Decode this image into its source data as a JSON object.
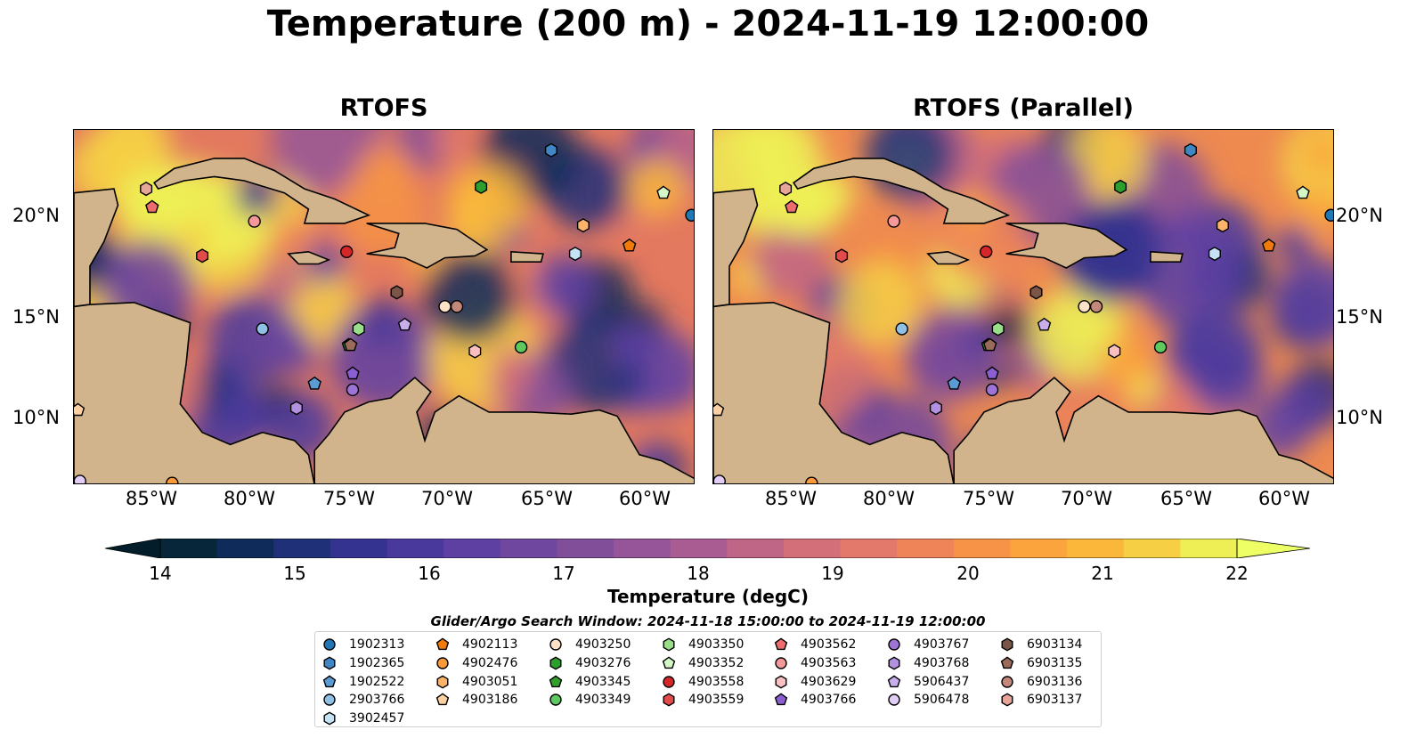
{
  "figure": {
    "suptitle": "Temperature (200 m) - 2024-11-19 12:00:00",
    "panels": [
      {
        "title": "RTOFS"
      },
      {
        "title": "RTOFS (Parallel)"
      }
    ],
    "lon_ticks": [
      "85°W",
      "80°W",
      "75°W",
      "70°W",
      "65°W",
      "60°W"
    ],
    "lat_ticks": [
      "20°N",
      "15°N",
      "10°N"
    ],
    "colorbar": {
      "label": "Temperature (degC)",
      "ticks": [
        "14",
        "15",
        "16",
        "17",
        "18",
        "19",
        "20",
        "21",
        "22"
      ],
      "colors": [
        "#08263a",
        "#0f2b5a",
        "#1f3078",
        "#34338f",
        "#4a399d",
        "#5e40a3",
        "#6f479f",
        "#814e9a",
        "#955598",
        "#a95c92",
        "#bf6586",
        "#d36f79",
        "#e3796a",
        "#ee8458",
        "#f69347",
        "#fba33c",
        "#fbb73a",
        "#f6cf45",
        "#eeee55"
      ],
      "extend_low": "#041d2a",
      "extend_high": "#eeff66"
    },
    "land_color": "#d2b48c",
    "ocean_color": "#95b4e0",
    "legend": {
      "title": "Glider/Argo Search Window: 2024-11-18 15:00:00 to 2024-11-19 12:00:00",
      "columns": [
        [
          {
            "label": "1902313",
            "marker": "circle",
            "color": "#1f77b4"
          },
          {
            "label": "1902365",
            "marker": "hexagon",
            "color": "#3f86c4"
          },
          {
            "label": "1902522",
            "marker": "pentagon",
            "color": "#5a9bd4"
          },
          {
            "label": "2903766",
            "marker": "circle",
            "color": "#8fc0e6"
          },
          {
            "label": "3902457",
            "marker": "hexagon",
            "color": "#c6e2f5"
          }
        ],
        [
          {
            "label": "4902113",
            "marker": "pentagon",
            "color": "#f07a0a"
          },
          {
            "label": "4902476",
            "marker": "circle",
            "color": "#fd9a3a"
          },
          {
            "label": "4903051",
            "marker": "hexagon",
            "color": "#fdb46a"
          },
          {
            "label": "4903186",
            "marker": "pentagon",
            "color": "#fdd0a2"
          }
        ],
        [
          {
            "label": "4903250",
            "marker": "circle",
            "color": "#fde2c8"
          },
          {
            "label": "4903276",
            "marker": "hexagon",
            "color": "#2ca02c"
          },
          {
            "label": "4903345",
            "marker": "pentagon",
            "color": "#33a02c"
          },
          {
            "label": "4903349",
            "marker": "circle",
            "color": "#5ec95e"
          }
        ],
        [
          {
            "label": "4903350",
            "marker": "hexagon",
            "color": "#98df8a"
          },
          {
            "label": "4903352",
            "marker": "pentagon",
            "color": "#d4f7c8"
          },
          {
            "label": "4903558",
            "marker": "circle",
            "color": "#d62728"
          },
          {
            "label": "4903559",
            "marker": "hexagon",
            "color": "#e34a4a"
          }
        ],
        [
          {
            "label": "4903562",
            "marker": "pentagon",
            "color": "#ee6b6e"
          },
          {
            "label": "4903563",
            "marker": "circle",
            "color": "#f4989a"
          },
          {
            "label": "4903629",
            "marker": "hexagon",
            "color": "#f9bfc1"
          },
          {
            "label": "4903766",
            "marker": "pentagon",
            "color": "#8b5fd1"
          }
        ],
        [
          {
            "label": "4903767",
            "marker": "circle",
            "color": "#9d74d6"
          },
          {
            "label": "4903768",
            "marker": "hexagon",
            "color": "#b391e1"
          },
          {
            "label": "5906437",
            "marker": "pentagon",
            "color": "#c9aeec"
          },
          {
            "label": "5906478",
            "marker": "circle",
            "color": "#e2cdf6"
          }
        ],
        [
          {
            "label": "6903134",
            "marker": "hexagon",
            "color": "#7b5547"
          },
          {
            "label": "6903135",
            "marker": "pentagon",
            "color": "#9a6a5a"
          },
          {
            "label": "6903136",
            "marker": "circle",
            "color": "#c4887a"
          },
          {
            "label": "6903137",
            "marker": "hexagon",
            "color": "#e8a69a"
          }
        ]
      ]
    },
    "floats": [
      {
        "label": "1902313",
        "lon": -58.2,
        "lat": 20.3
      },
      {
        "label": "1902365",
        "lon": -65.2,
        "lat": 23.5
      },
      {
        "label": "1902522",
        "lon": -77.0,
        "lat": 12.0
      },
      {
        "label": "2903766",
        "lon": -79.6,
        "lat": 14.7
      },
      {
        "label": "3902457",
        "lon": -64.0,
        "lat": 18.4
      },
      {
        "label": "4902113",
        "lon": -61.3,
        "lat": 18.8
      },
      {
        "label": "4902476",
        "lon": -84.1,
        "lat": 7.1
      },
      {
        "label": "4903051",
        "lon": -63.6,
        "lat": 19.8
      },
      {
        "label": "4903186",
        "lon": -88.8,
        "lat": 10.7
      },
      {
        "label": "4903250",
        "lon": -70.5,
        "lat": 15.8
      },
      {
        "label": "4903276",
        "lon": -68.7,
        "lat": 21.7
      },
      {
        "label": "4903345",
        "lon": -75.3,
        "lat": 13.9
      },
      {
        "label": "4903349",
        "lon": -66.7,
        "lat": 13.8
      },
      {
        "label": "4903350",
        "lon": -74.8,
        "lat": 14.7
      },
      {
        "label": "4903352",
        "lon": -59.6,
        "lat": 21.4
      },
      {
        "label": "4903558",
        "lon": -75.4,
        "lat": 18.5
      },
      {
        "label": "4903559",
        "lon": -82.6,
        "lat": 18.3
      },
      {
        "label": "4903562",
        "lon": -85.1,
        "lat": 20.7
      },
      {
        "label": "4903563",
        "lon": -80.0,
        "lat": 20.0
      },
      {
        "label": "4903629",
        "lon": -69.0,
        "lat": 13.6
      },
      {
        "label": "4903766",
        "lon": -75.1,
        "lat": 12.5
      },
      {
        "label": "4903767",
        "lon": -75.1,
        "lat": 11.7
      },
      {
        "label": "4903768",
        "lon": -77.9,
        "lat": 10.8
      },
      {
        "label": "5906437",
        "lon": -72.5,
        "lat": 14.9
      },
      {
        "label": "5906478",
        "lon": -88.7,
        "lat": 7.2
      },
      {
        "label": "6903134",
        "lon": -72.9,
        "lat": 16.5
      },
      {
        "label": "6903135",
        "lon": -75.2,
        "lat": 13.9
      },
      {
        "label": "6903136",
        "lon": -69.9,
        "lat": 15.8
      },
      {
        "label": "6903137",
        "lon": -85.4,
        "lat": 21.6
      }
    ]
  }
}
